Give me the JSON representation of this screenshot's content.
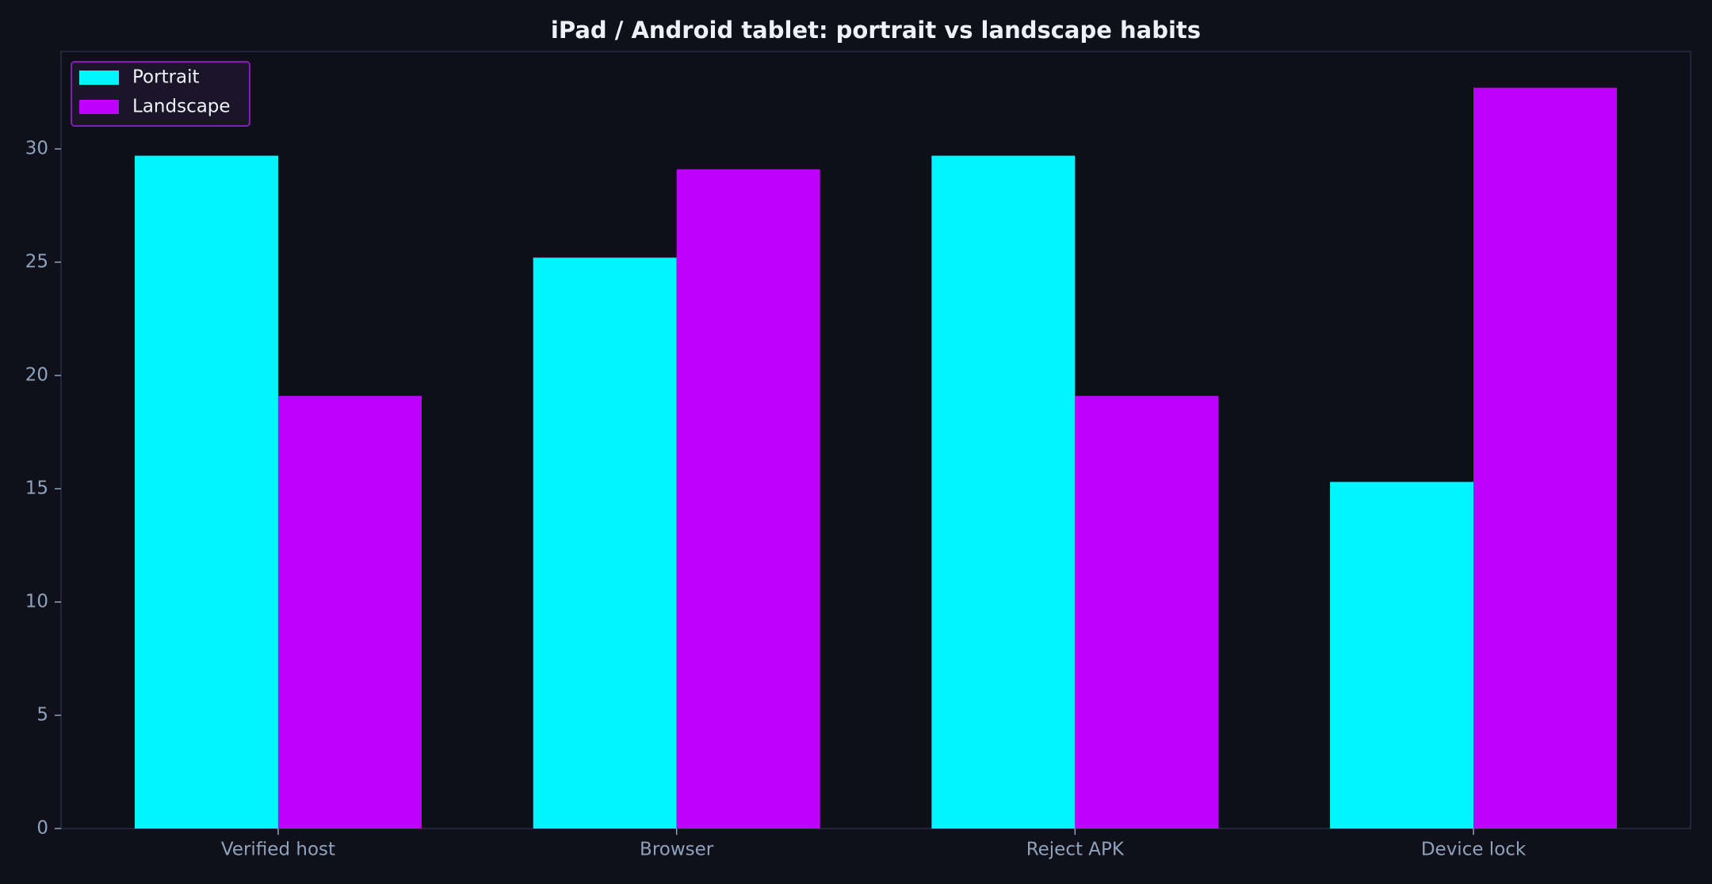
{
  "chart_data": {
    "type": "bar",
    "title": "iPad / Android tablet: portrait vs landscape habits",
    "categories": [
      "Verified host",
      "Browser",
      "Reject APK",
      "Device lock"
    ],
    "series": [
      {
        "name": "Portrait",
        "color": "#00f5ff",
        "values": [
          29.7,
          25.2,
          29.7,
          15.3
        ]
      },
      {
        "name": "Landscape",
        "color": "#bf00ff",
        "values": [
          19.1,
          29.1,
          19.1,
          32.7
        ]
      }
    ],
    "ylim": [
      0,
      34.3
    ],
    "yticks": [
      0,
      5,
      10,
      15,
      20,
      25,
      30
    ],
    "legend": "upper left"
  }
}
